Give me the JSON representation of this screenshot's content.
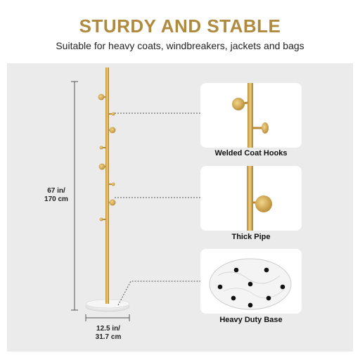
{
  "header": {
    "title": "STURDY AND STABLE",
    "subtitle": "Suitable for heavy coats, windbreakers, jackets and bags"
  },
  "dimensions": {
    "height_in": "67 in/",
    "height_cm": "170 cm",
    "base_in": "12.5 in/",
    "base_cm": "31.7 cm"
  },
  "details": [
    {
      "caption": "Welded Coat Hooks"
    },
    {
      "caption": "Thick Pipe"
    },
    {
      "caption": "Heavy Duty Base"
    }
  ],
  "colors": {
    "accent_gold": "#b08a3e",
    "pole_gold": "#d4a94c",
    "panel_bg": "#ebebeb"
  }
}
